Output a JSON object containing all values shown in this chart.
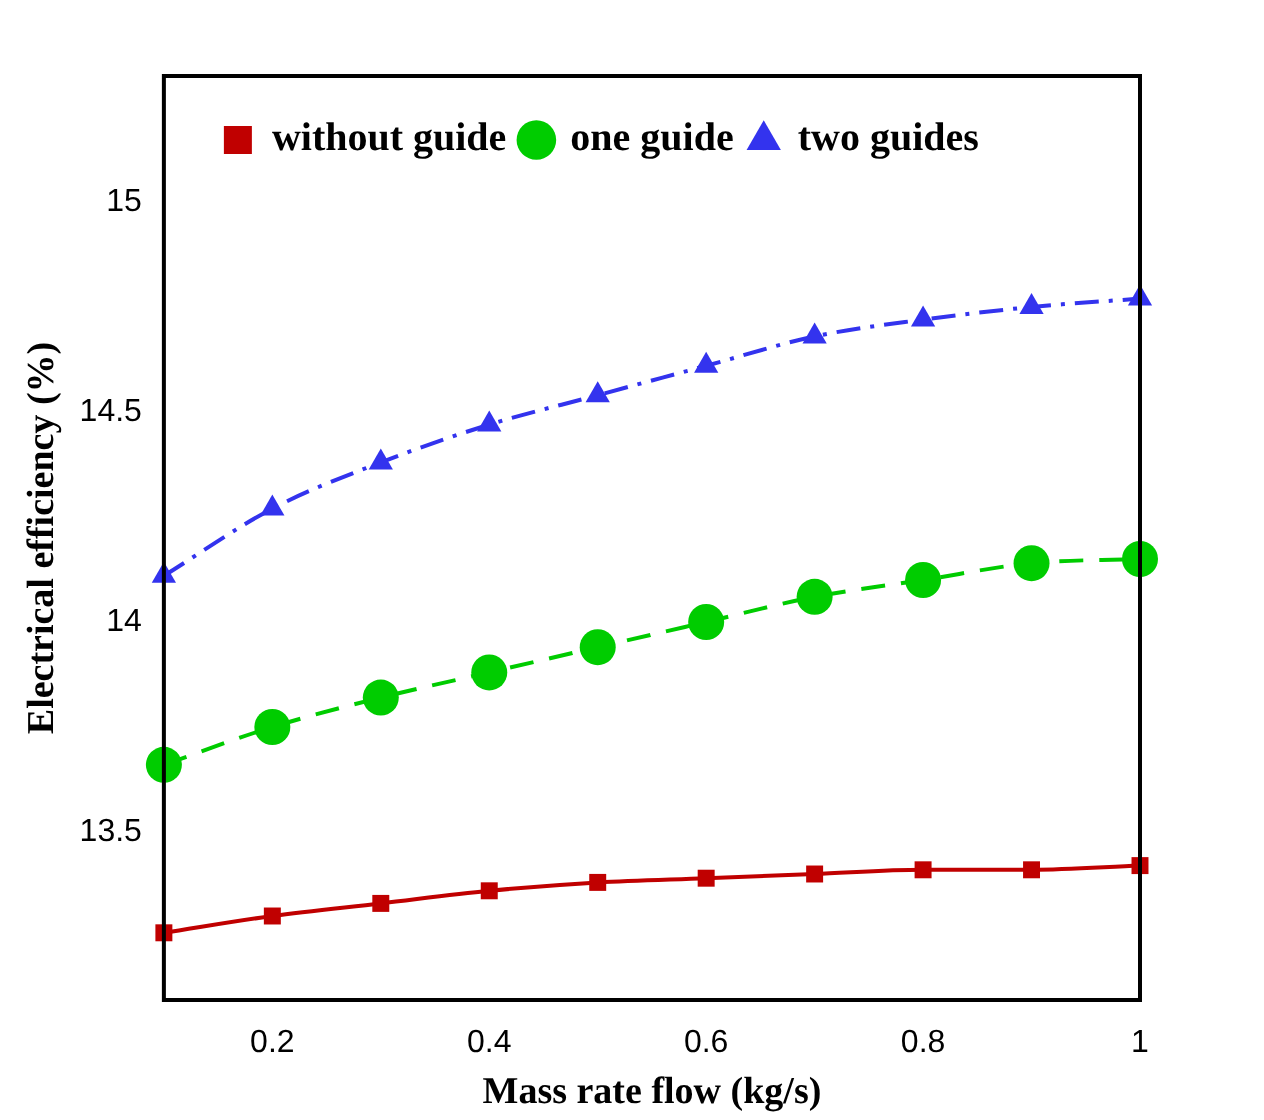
{
  "chart_data": {
    "type": "line",
    "xlabel": "Mass rate flow (kg/s)",
    "ylabel": "Electrical efficiency (%)",
    "x": [
      0.1,
      0.2,
      0.3,
      0.4,
      0.5,
      0.6,
      0.7,
      0.8,
      0.9,
      1
    ],
    "xlim": [
      0.1,
      1
    ],
    "xticks": [
      0.2,
      0.4,
      0.6,
      0.8,
      1
    ],
    "ylim": [
      13.1,
      15.3
    ],
    "yticks": [
      13.5,
      14,
      14.5,
      15
    ],
    "grid": false,
    "legend": "top left",
    "series": [
      {
        "name": "without guide",
        "color": "#c00000",
        "marker": "square",
        "line_style": "solid",
        "values": [
          13.26,
          13.3,
          13.33,
          13.36,
          13.38,
          13.39,
          13.4,
          13.41,
          13.41,
          13.42
        ]
      },
      {
        "name": "one guide",
        "color": "#00cc00",
        "marker": "circle",
        "line_style": "dashed",
        "values": [
          13.66,
          13.75,
          13.82,
          13.88,
          13.94,
          14,
          14.06,
          14.1,
          14.14,
          14.15
        ]
      },
      {
        "name": "two guides",
        "color": "#3333ee",
        "marker": "triangle",
        "line_style": "dashdot",
        "values": [
          14.11,
          14.27,
          14.38,
          14.47,
          14.54,
          14.61,
          14.68,
          14.72,
          14.75,
          14.77
        ]
      }
    ]
  }
}
